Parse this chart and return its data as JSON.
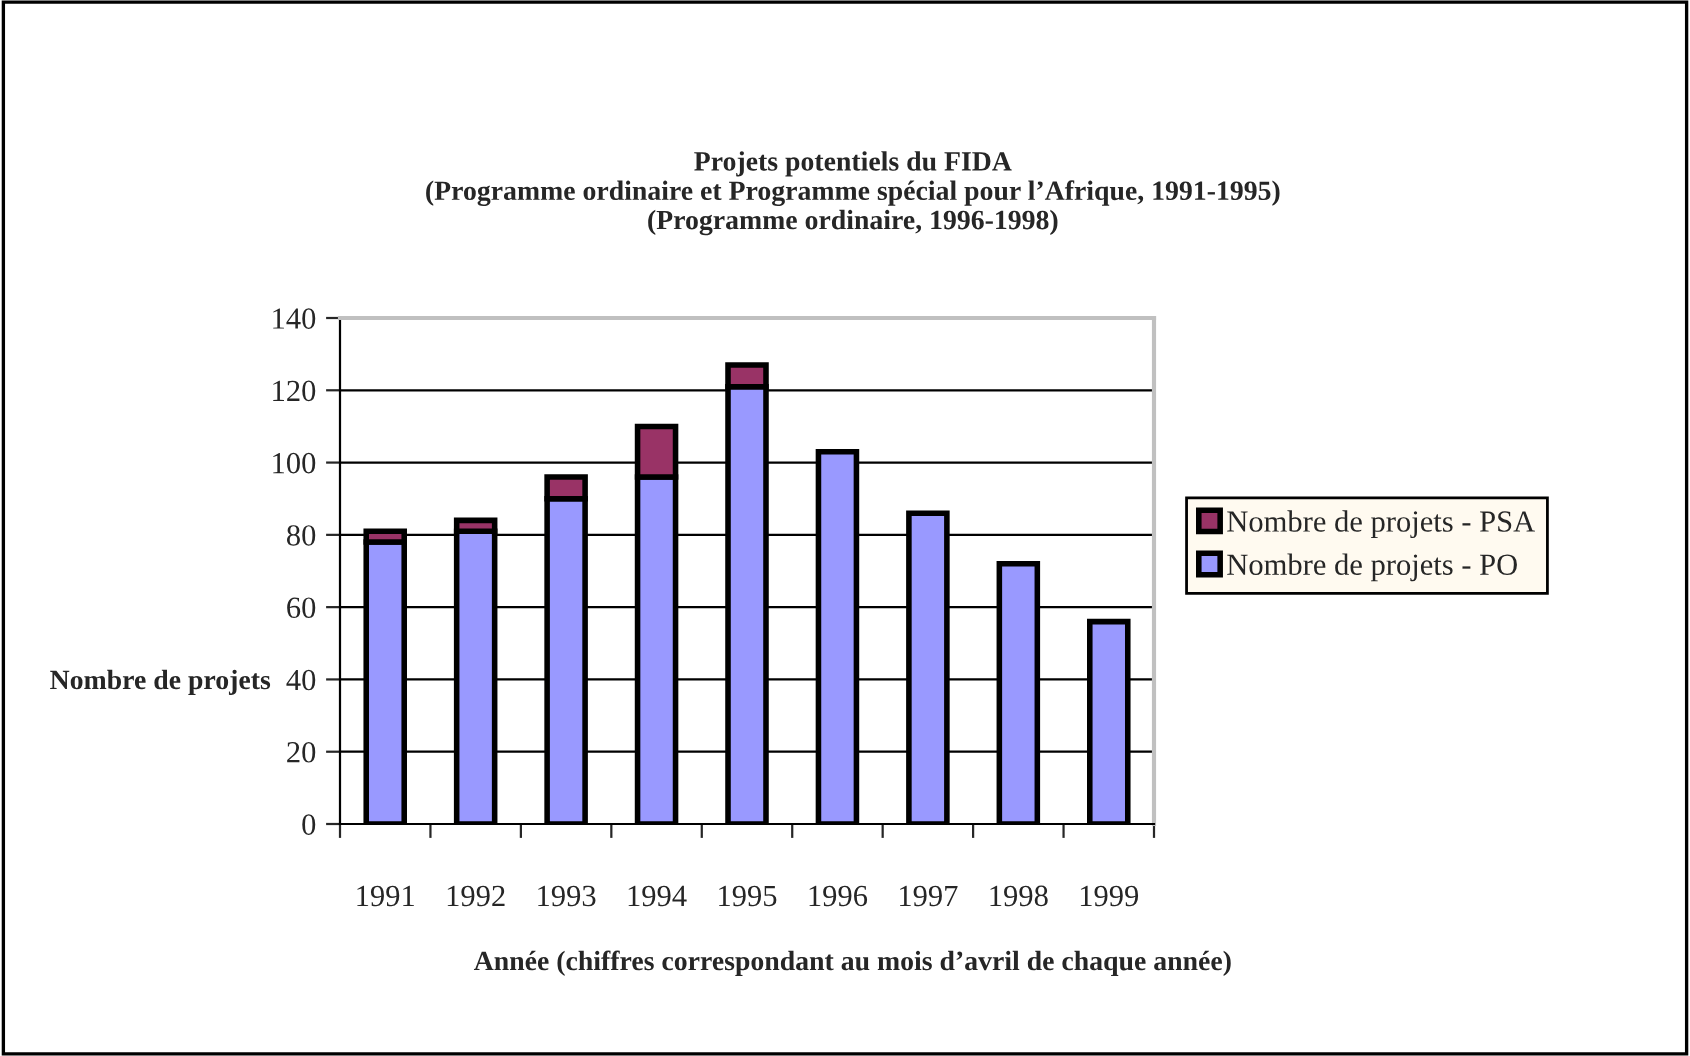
{
  "chart_data": {
    "type": "bar",
    "title": "Projets potentiels du FIDA\n(Programme ordinaire et Programme spécial pour l’Afrique, 1991-1995)\n(Programme ordinaire, 1996-1998)",
    "xlabel": "Année (chiffres correspondant au mois d’avril de chaque année)",
    "ylabel": "Nombre de projets",
    "categories": [
      "1991",
      "1992",
      "1993",
      "1994",
      "1995",
      "1996",
      "1997",
      "1998",
      "1999"
    ],
    "series": [
      {
        "name": "Nombre de projets - PO",
        "color": "#9999ff",
        "values": [
          78,
          81,
          90,
          96,
          121,
          103,
          86,
          72,
          56
        ]
      },
      {
        "name": "Nombre de projets - PSA",
        "color": "#993366",
        "values": [
          3,
          3,
          6,
          14,
          6,
          null,
          null,
          null,
          null
        ]
      }
    ],
    "stacked": true,
    "ylim": [
      0,
      140
    ],
    "yticks": [
      0,
      20,
      40,
      60,
      80,
      100,
      120,
      140
    ],
    "grid": "y",
    "legend": "right"
  }
}
